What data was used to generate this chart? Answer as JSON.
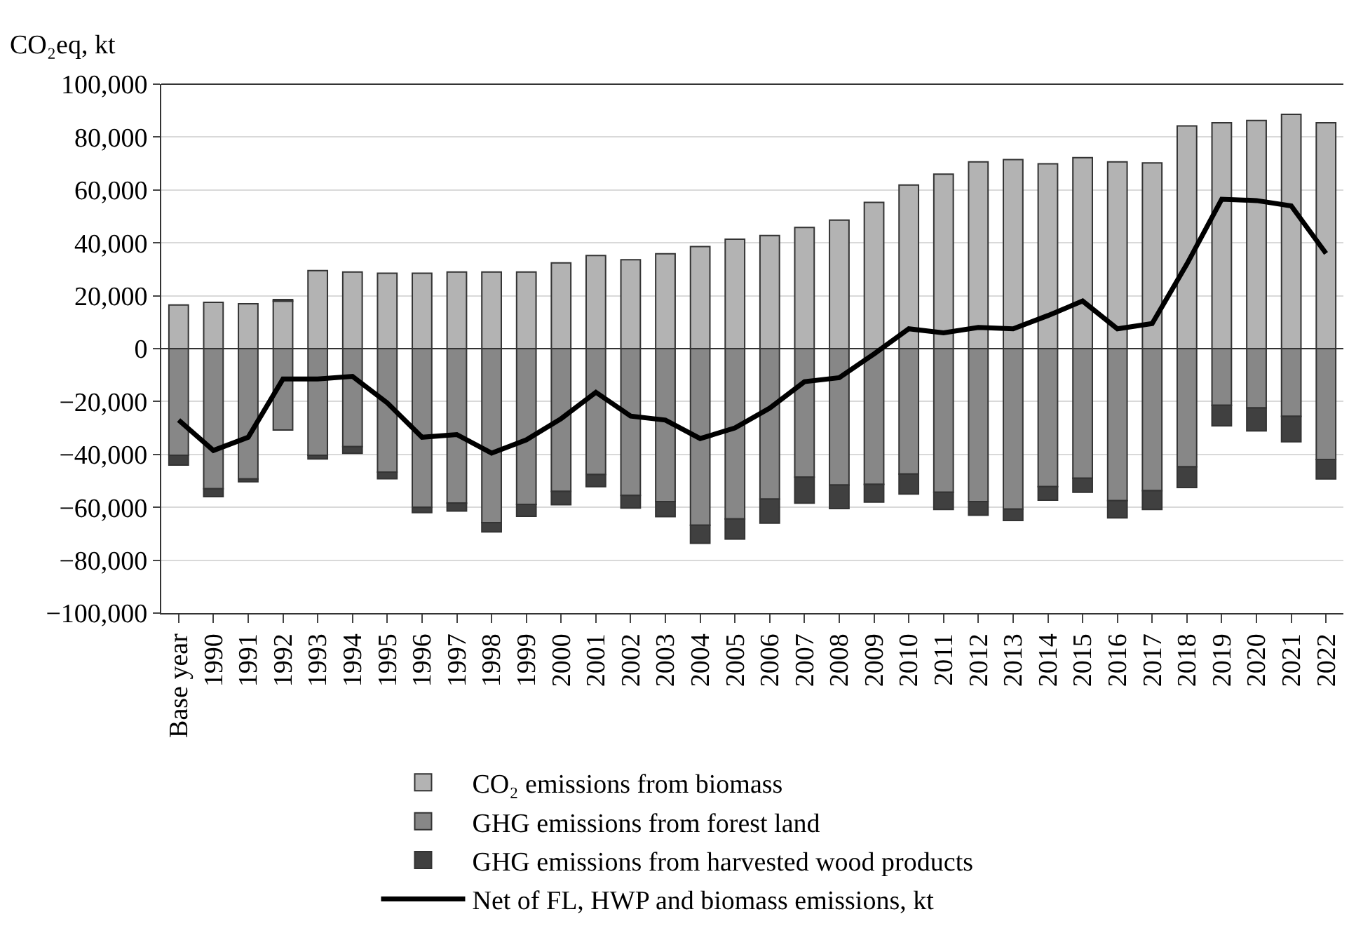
{
  "chart_data": {
    "type": "bar",
    "stacked": true,
    "ylabel": "CO₂eq, kt",
    "categories": [
      "Base year",
      "1990",
      "1991",
      "1992",
      "1993",
      "1994",
      "1995",
      "1996",
      "1997",
      "1998",
      "1999",
      "2000",
      "2001",
      "2002",
      "2003",
      "2004",
      "2005",
      "2006",
      "2007",
      "2008",
      "2009",
      "2010",
      "2011",
      "2012",
      "2013",
      "2014",
      "2015",
      "2016",
      "2017",
      "2018",
      "2019",
      "2020",
      "2021",
      "2022"
    ],
    "series": [
      {
        "name": "CO₂ emissions from biomass",
        "color": "#b3b3b3",
        "values": [
          16500,
          17500,
          17000,
          18000,
          29500,
          29000,
          28500,
          28500,
          29000,
          29000,
          29000,
          32400,
          35200,
          33600,
          35900,
          38600,
          41400,
          42800,
          45800,
          48600,
          55300,
          61900,
          66000,
          70600,
          71500,
          69900,
          72200,
          70600,
          70200,
          84200,
          85400,
          86300,
          88600,
          85400
        ]
      },
      {
        "name": "GHG emissions from forest land",
        "color": "#878787",
        "values": [
          -40300,
          -53000,
          -49300,
          -30800,
          -40300,
          -37100,
          -46700,
          -60000,
          -58400,
          -65800,
          -58900,
          -54000,
          -47600,
          -55500,
          -57800,
          -66800,
          -64400,
          -56900,
          -48600,
          -51600,
          -51300,
          -47400,
          -54300,
          -57800,
          -60700,
          -52200,
          -49000,
          -57500,
          -53700,
          -44700,
          -21400,
          -22400,
          -25600,
          -41900
        ]
      },
      {
        "name": "GHG emissions from harvested wood products",
        "color": "#404040",
        "values": [
          -3700,
          -3000,
          -1000,
          600,
          -1400,
          -2500,
          -2500,
          -2000,
          -3000,
          -3500,
          -4500,
          -5000,
          -4600,
          -4800,
          -5700,
          -6800,
          -7600,
          -9100,
          -9800,
          -8900,
          -6700,
          -7600,
          -6500,
          -5200,
          -4300,
          -5100,
          -5300,
          -6500,
          -7100,
          -7800,
          -7800,
          -8700,
          -9600,
          -7400
        ]
      },
      {
        "name": "Net of FL, HWP and biomass emissions, kt",
        "type": "line",
        "color": "#000000",
        "values": [
          -27000,
          -38500,
          -33500,
          -11500,
          -11500,
          -10500,
          -20500,
          -33500,
          -32500,
          -39500,
          -34500,
          -26500,
          -16500,
          -25500,
          -27000,
          -34000,
          -30000,
          -22500,
          -12500,
          -11000,
          -2000,
          7500,
          6000,
          8000,
          7500,
          12500,
          18000,
          7500,
          9500,
          32000,
          56500,
          56000,
          54000,
          36000
        ]
      }
    ],
    "ylim": [
      -100000,
      100000
    ],
    "yticks": [
      {
        "value": -100000,
        "label": "−100,000"
      },
      {
        "value": -80000,
        "label": "−80,000"
      },
      {
        "value": -60000,
        "label": "−60,000"
      },
      {
        "value": -40000,
        "label": "−40,000"
      },
      {
        "value": -20000,
        "label": "−20,000"
      },
      0,
      {
        "value": 20000,
        "label": "20,000"
      },
      {
        "value": 40000,
        "label": "40,000"
      },
      {
        "value": 60000,
        "label": "60,000"
      },
      {
        "value": 80000,
        "label": "80,000"
      },
      {
        "value": 100000,
        "label": "100,000"
      }
    ],
    "grid": "y",
    "legend": "bottom",
    "marker": "none",
    "line_style": "solid"
  }
}
